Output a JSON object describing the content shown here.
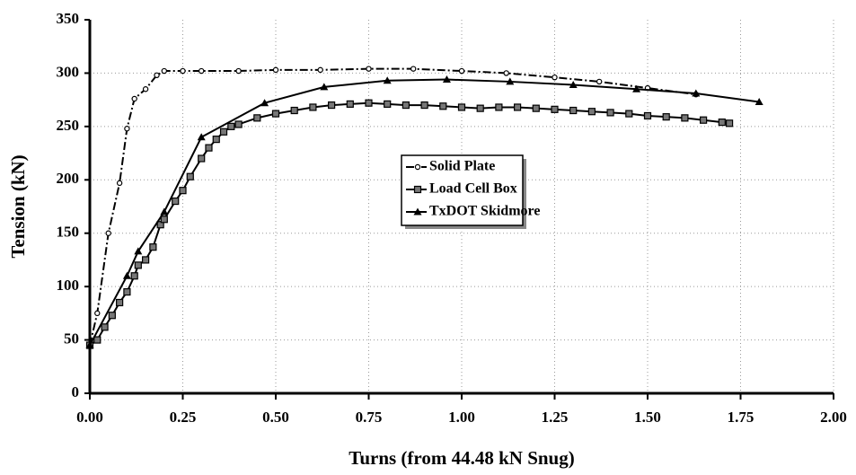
{
  "chart_data": {
    "type": "line",
    "x_label": "Turns (from 44.48 kN Snug)",
    "y_label": "Tension (kN)",
    "xlim": [
      0,
      2
    ],
    "ylim": [
      0,
      350
    ],
    "xticks": [
      {
        "value": 0,
        "label": "0.00"
      },
      {
        "value": 0.25,
        "label": "0.25"
      },
      {
        "value": 0.5,
        "label": "0.50"
      },
      {
        "value": 0.75,
        "label": "0.75"
      },
      {
        "value": 1,
        "label": "1.00"
      },
      {
        "value": 1.25,
        "label": "1.25"
      },
      {
        "value": 1.5,
        "label": "1.50"
      },
      {
        "value": 1.75,
        "label": "1.75"
      },
      {
        "value": 2,
        "label": "2.00"
      }
    ],
    "yticks": [
      0,
      50,
      100,
      150,
      200,
      250,
      300,
      350
    ],
    "grid": true,
    "series": [
      {
        "name": "Solid Plate",
        "color": "#000000",
        "marker": "circle",
        "line_style": "dashdot",
        "x": [
          0,
          0.02,
          0.05,
          0.08,
          0.1,
          0.12,
          0.15,
          0.18,
          0.2,
          0.25,
          0.3,
          0.4,
          0.5,
          0.62,
          0.75,
          0.87,
          1.0,
          1.12,
          1.25,
          1.37,
          1.5,
          1.63
        ],
        "values": [
          45,
          75,
          150,
          197,
          248,
          276,
          285,
          298,
          302,
          302,
          302,
          302,
          303,
          303,
          304,
          304,
          302,
          300,
          296,
          292,
          286,
          280
        ]
      },
      {
        "name": "Load Cell Box",
        "color": "#000000",
        "marker": "square",
        "line_style": "solid",
        "x": [
          0,
          0.02,
          0.04,
          0.06,
          0.08,
          0.1,
          0.12,
          0.13,
          0.15,
          0.17,
          0.19,
          0.2,
          0.23,
          0.25,
          0.27,
          0.3,
          0.32,
          0.34,
          0.36,
          0.38,
          0.4,
          0.45,
          0.5,
          0.55,
          0.6,
          0.65,
          0.7,
          0.75,
          0.8,
          0.85,
          0.9,
          0.95,
          1.0,
          1.05,
          1.1,
          1.15,
          1.2,
          1.25,
          1.3,
          1.35,
          1.4,
          1.45,
          1.5,
          1.55,
          1.6,
          1.65,
          1.7,
          1.72
        ],
        "values": [
          45,
          50,
          62,
          73,
          85,
          95,
          110,
          120,
          125,
          137,
          158,
          163,
          180,
          190,
          203,
          220,
          230,
          238,
          245,
          250,
          252,
          258,
          262,
          265,
          268,
          270,
          271,
          272,
          271,
          270,
          270,
          269,
          268,
          267,
          268,
          268,
          267,
          266,
          265,
          264,
          263,
          262,
          260,
          259,
          258,
          256,
          254,
          253
        ]
      },
      {
        "name": "TxDOT Skidmore",
        "color": "#000000",
        "marker": "triangle",
        "line_style": "solid",
        "x": [
          0,
          0.1,
          0.13,
          0.2,
          0.3,
          0.47,
          0.63,
          0.8,
          0.96,
          1.13,
          1.3,
          1.47,
          1.63,
          1.8
        ],
        "values": [
          45,
          110,
          133,
          170,
          240,
          272,
          287,
          293,
          294,
          292,
          289,
          285,
          281,
          273
        ]
      }
    ]
  }
}
